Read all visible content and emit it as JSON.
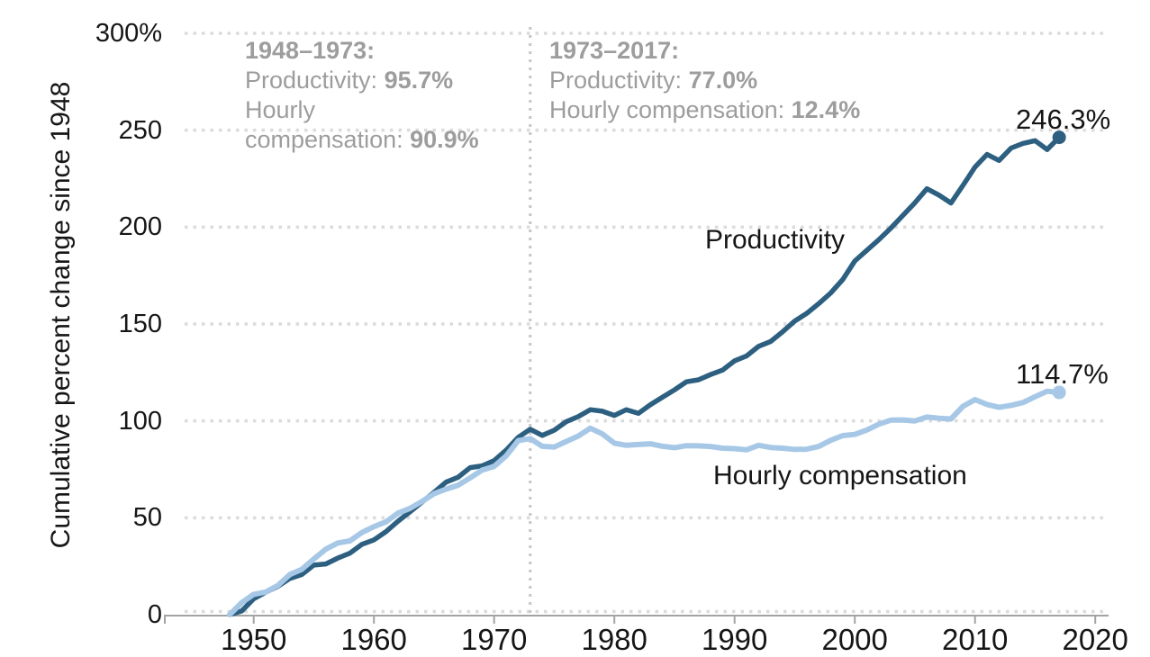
{
  "colors": {
    "background": "#ffffff",
    "text": "#161616",
    "annotation_text": "#9d9d9d",
    "grid": "#dbdbdb",
    "axis": "#a3a3a3",
    "vline": "#c6c6c6",
    "productivity_line": "#2d5f80",
    "compensation_line": "#a6c8e6"
  },
  "chart_data": {
    "type": "line",
    "title": "",
    "xlabel": "",
    "ylabel": "Cumulative percent change since 1948",
    "xlim": [
      1948,
      2020
    ],
    "ylim": [
      0,
      300
    ],
    "grid": "horizontal dotted",
    "legend_position": "inline labels on lines",
    "years_start": 1948,
    "years_end": 2017,
    "reference_line": {
      "year": 1973,
      "style": "vertical dotted"
    },
    "x_axis": {
      "ticks": [
        {
          "label": "1950",
          "year": 1950
        },
        {
          "label": "1960",
          "year": 1960
        },
        {
          "label": "1970",
          "year": 1970
        },
        {
          "label": "1980",
          "year": 1980
        },
        {
          "label": "1990",
          "year": 1990
        },
        {
          "label": "2000",
          "year": 2000
        },
        {
          "label": "2010",
          "year": 2010
        },
        {
          "label": "2020",
          "year": 2020
        }
      ]
    },
    "y_axis": {
      "ticks": [
        {
          "label": "300%",
          "value": 300
        },
        {
          "label": "250",
          "value": 250
        },
        {
          "label": "200",
          "value": 200
        },
        {
          "label": "150",
          "value": 150
        },
        {
          "label": "100",
          "value": 100
        },
        {
          "label": "50",
          "value": 50
        },
        {
          "label": "0",
          "value": 0
        }
      ]
    },
    "series": [
      {
        "name": "Productivity",
        "color": "#2d5f80",
        "end_label": "246.3%",
        "end_value": 246.3,
        "values": [
          0,
          1.9,
          8.2,
          11.6,
          14.6,
          18.7,
          20.7,
          25.6,
          26.2,
          29.2,
          31.7,
          36.3,
          38.6,
          42.8,
          48.2,
          53.1,
          58.1,
          63.1,
          68.4,
          70.9,
          75.9,
          76.8,
          79.5,
          84.9,
          91.5,
          95.7,
          92.5,
          95.2,
          99.6,
          102.2,
          105.8,
          105.0,
          102.8,
          105.8,
          103.9,
          108.4,
          112.2,
          116.0,
          120.2,
          121.2,
          123.9,
          126.2,
          131.0,
          133.5,
          138.5,
          141.0,
          146.0,
          151.5,
          155.5,
          160.5,
          166.0,
          173.0,
          182.5,
          188.0,
          193.5,
          199.5,
          206.0,
          212.5,
          219.8,
          216.5,
          212.4,
          221.5,
          231.0,
          237.5,
          234.4,
          240.8,
          243.2,
          244.6,
          240.0,
          246.3
        ]
      },
      {
        "name": "Hourly compensation",
        "color": "#a6c8e6",
        "end_label": "114.7%",
        "end_value": 114.7,
        "values": [
          0,
          6.2,
          10.5,
          11.7,
          15.0,
          20.7,
          23.4,
          28.7,
          33.8,
          37.0,
          38.1,
          42.4,
          45.4,
          47.9,
          52.4,
          54.9,
          58.4,
          62.4,
          64.8,
          66.8,
          70.6,
          74.6,
          76.5,
          81.9,
          89.8,
          90.9,
          86.9,
          86.5,
          89.4,
          92.2,
          96.2,
          93.3,
          88.5,
          87.4,
          87.8,
          88.2,
          86.9,
          86.2,
          87.2,
          87.1,
          86.8,
          85.9,
          85.7,
          85.1,
          87.4,
          86.3,
          85.9,
          85.3,
          85.4,
          86.8,
          90.0,
          92.4,
          93.0,
          95.3,
          98.3,
          100.4,
          100.5,
          100.0,
          102.0,
          101.4,
          101.0,
          107.5,
          111.0,
          108.5,
          107.0,
          108.0,
          109.5,
          112.5,
          115.3,
          114.7
        ]
      }
    ],
    "annotations": [
      {
        "title": "1948–1973:",
        "lines": [
          {
            "label": "Productivity: ",
            "value": "95.7%"
          },
          {
            "label": "Hourly",
            "value": ""
          },
          {
            "label": "compensation: ",
            "value": "90.9%"
          }
        ]
      },
      {
        "title": "1973–2017:",
        "lines": [
          {
            "label": "Productivity: ",
            "value": "77.0%"
          },
          {
            "label": "Hourly compensation: ",
            "value": "12.4%"
          }
        ]
      }
    ]
  }
}
